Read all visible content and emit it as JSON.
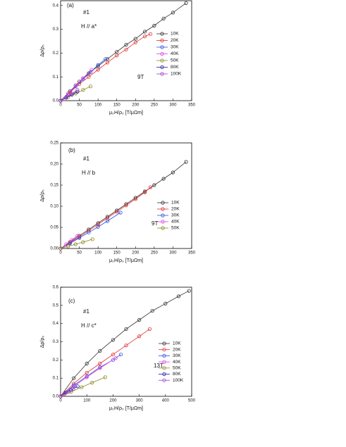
{
  "chart_data": [
    {
      "type": "line",
      "marker": "open-circle",
      "xlabel": "μ₀H/ρ₀ [T/μΩm]",
      "ylabel": "Δρ/ρ₀",
      "annotations": [
        "(a)",
        "#1",
        "H // a*",
        "9T"
      ],
      "xlim": [
        0,
        350
      ],
      "xticks": [
        0,
        50,
        100,
        150,
        200,
        250,
        300,
        350
      ],
      "ylim": [
        0,
        0.42
      ],
      "yticks": [
        {
          "value": 0,
          "label": "0.0"
        },
        0.1,
        0.2,
        0.3,
        0.4
      ],
      "series": [
        {
          "name": "10K",
          "color": "#333333",
          "x": [
            0,
            25,
            50,
            75,
            100,
            125,
            150,
            175,
            200,
            225,
            250,
            275,
            300,
            335
          ],
          "values": [
            0,
            0.04,
            0.08,
            0.115,
            0.145,
            0.175,
            0.205,
            0.235,
            0.26,
            0.29,
            0.315,
            0.345,
            0.37,
            0.41
          ]
        },
        {
          "name": "20K",
          "color": "#e03030",
          "x": [
            0,
            25,
            50,
            75,
            100,
            125,
            150,
            175,
            200,
            225,
            240
          ],
          "values": [
            0,
            0.035,
            0.07,
            0.1,
            0.13,
            0.16,
            0.19,
            0.215,
            0.245,
            0.27,
            0.28
          ]
        },
        {
          "name": "30K",
          "color": "#3050e0",
          "x": [
            0,
            20,
            40,
            60,
            80,
            100,
            120
          ],
          "values": [
            0,
            0.03,
            0.06,
            0.09,
            0.12,
            0.15,
            0.175
          ]
        },
        {
          "name": "40K",
          "color": "#e040e0",
          "x": [
            0,
            20,
            40,
            60,
            83
          ],
          "values": [
            0,
            0.03,
            0.065,
            0.095,
            0.13
          ]
        },
        {
          "name": "50K",
          "color": "#8a8a20",
          "x": [
            0,
            20,
            40,
            60,
            80
          ],
          "values": [
            0,
            0.015,
            0.03,
            0.045,
            0.06
          ]
        },
        {
          "name": "80K",
          "color": "#2020a0",
          "x": [
            0,
            15,
            30,
            45
          ],
          "values": [
            0,
            0.012,
            0.025,
            0.038
          ]
        },
        {
          "name": "100K",
          "color": "#a040c0",
          "x": [
            0,
            15,
            30,
            45
          ],
          "values": [
            0,
            0.015,
            0.03,
            0.045
          ]
        }
      ]
    },
    {
      "type": "line",
      "marker": "open-circle",
      "xlabel": "μ₀H/ρ₀ [T/μΩm]",
      "ylabel": "Δρ/ρ₀",
      "annotations": [
        "(b)",
        "#1",
        "H // b",
        "9T"
      ],
      "xlim": [
        0,
        350
      ],
      "xticks": [
        0,
        50,
        100,
        150,
        200,
        250,
        300,
        350
      ],
      "ylim": [
        0,
        0.25
      ],
      "yticks": [
        {
          "value": 0,
          "label": "0.00"
        },
        0.05,
        {
          "value": 0.1,
          "label": "0.10"
        },
        0.15,
        {
          "value": 0.2,
          "label": "0.20"
        },
        0.25
      ],
      "series": [
        {
          "name": "10K",
          "color": "#333333",
          "x": [
            0,
            25,
            50,
            75,
            100,
            125,
            150,
            175,
            200,
            225,
            250,
            275,
            300,
            335
          ],
          "values": [
            0,
            0.015,
            0.03,
            0.045,
            0.06,
            0.075,
            0.09,
            0.105,
            0.12,
            0.135,
            0.15,
            0.165,
            0.18,
            0.205
          ]
        },
        {
          "name": "20K",
          "color": "#e03030",
          "x": [
            0,
            25,
            50,
            75,
            100,
            125,
            150,
            175,
            200,
            225,
            240
          ],
          "values": [
            0,
            0.013,
            0.027,
            0.042,
            0.057,
            0.072,
            0.087,
            0.102,
            0.117,
            0.133,
            0.145
          ]
        },
        {
          "name": "30K",
          "color": "#3050e0",
          "x": [
            0,
            25,
            50,
            75,
            100,
            125,
            160
          ],
          "values": [
            0,
            0.012,
            0.025,
            0.038,
            0.051,
            0.065,
            0.085
          ]
        },
        {
          "name": "40K",
          "color": "#e040e0",
          "x": [
            0,
            15,
            30,
            45
          ],
          "values": [
            0,
            0.01,
            0.02,
            0.03
          ]
        },
        {
          "name": "50K",
          "color": "#8a8a20",
          "x": [
            0,
            20,
            40,
            60,
            85
          ],
          "values": [
            0,
            0.005,
            0.01,
            0.015,
            0.022
          ]
        }
      ]
    },
    {
      "type": "line",
      "marker": "open-circle",
      "xlabel": "μ₀H/ρ₀ [T/μΩm]",
      "ylabel": "Δρ/ρ₀",
      "annotations": [
        "(c)",
        "#1",
        "H // c*",
        "13T"
      ],
      "xlim": [
        0,
        500
      ],
      "xticks": [
        0,
        100,
        200,
        300,
        400,
        500
      ],
      "ylim": [
        0,
        0.6
      ],
      "yticks": [
        {
          "value": 0,
          "label": "0.0"
        },
        0.1,
        0.2,
        0.3,
        0.4,
        0.5,
        0.6
      ],
      "series": [
        {
          "name": "10K",
          "color": "#333333",
          "x": [
            0,
            50,
            100,
            150,
            200,
            250,
            300,
            350,
            400,
            450,
            490
          ],
          "values": [
            0,
            0.1,
            0.18,
            0.25,
            0.31,
            0.37,
            0.42,
            0.47,
            0.51,
            0.55,
            0.58
          ]
        },
        {
          "name": "20K",
          "color": "#e03030",
          "x": [
            0,
            50,
            100,
            150,
            200,
            250,
            300,
            340
          ],
          "values": [
            0,
            0.07,
            0.13,
            0.18,
            0.23,
            0.28,
            0.33,
            0.37
          ]
        },
        {
          "name": "30K",
          "color": "#3050e0",
          "x": [
            0,
            50,
            100,
            150,
            200,
            230
          ],
          "values": [
            0,
            0.06,
            0.11,
            0.16,
            0.2,
            0.23
          ]
        },
        {
          "name": "40K",
          "color": "#e040e0",
          "x": [
            0,
            50,
            100,
            150,
            210
          ],
          "values": [
            0,
            0.055,
            0.105,
            0.155,
            0.21
          ]
        },
        {
          "name": "50K",
          "color": "#8a8a20",
          "x": [
            0,
            40,
            80,
            120,
            170
          ],
          "values": [
            0,
            0.025,
            0.05,
            0.075,
            0.105
          ]
        },
        {
          "name": "80K",
          "color": "#2020a0",
          "x": [
            0,
            20,
            40,
            65
          ],
          "values": [
            0,
            0.02,
            0.035,
            0.055
          ]
        },
        {
          "name": "100K",
          "color": "#a040c0",
          "x": [
            0,
            15,
            30,
            48
          ],
          "values": [
            0,
            0.013,
            0.025,
            0.04
          ]
        }
      ]
    }
  ]
}
